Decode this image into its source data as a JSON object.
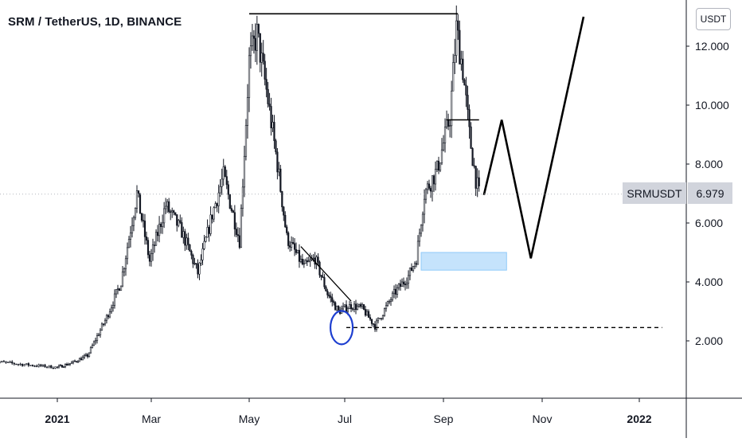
{
  "chart_data": {
    "type": "candlestick",
    "title": "SRM / TetherUS, 1D, BINANCE",
    "currency": "USDT",
    "symbol": "SRMUSDT",
    "last_price": "6.979",
    "x_ticks": [
      {
        "label": "2021",
        "date": "2021-01-01",
        "bold": true
      },
      {
        "label": "Mar",
        "date": "2021-03-01",
        "bold": false
      },
      {
        "label": "May",
        "date": "2021-05-01",
        "bold": false
      },
      {
        "label": "Jul",
        "date": "2021-07-01",
        "bold": false
      },
      {
        "label": "Sep",
        "date": "2021-09-01",
        "bold": false
      },
      {
        "label": "Nov",
        "date": "2021-11-01",
        "bold": false
      },
      {
        "label": "2022",
        "date": "2022-01-01",
        "bold": true
      }
    ],
    "y_ticks": [
      {
        "label": "2.000",
        "value": 2
      },
      {
        "label": "4.000",
        "value": 4
      },
      {
        "label": "6.000",
        "value": 6
      },
      {
        "label": "8.000",
        "value": 8
      },
      {
        "label": "10.000",
        "value": 10
      },
      {
        "label": "12.000",
        "value": 12
      }
    ],
    "price_path": [
      [
        "2020-12-01",
        1.3
      ],
      [
        "2020-12-15",
        1.2
      ],
      [
        "2021-01-01",
        1.1
      ],
      [
        "2021-01-10",
        1.25
      ],
      [
        "2021-01-20",
        1.5
      ],
      [
        "2021-02-01",
        2.8
      ],
      [
        "2021-02-10",
        4.0
      ],
      [
        "2021-02-20",
        7.0
      ],
      [
        "2021-02-28",
        4.7
      ],
      [
        "2021-03-10",
        6.6
      ],
      [
        "2021-03-20",
        5.7
      ],
      [
        "2021-03-30",
        4.3
      ],
      [
        "2021-04-08",
        6.3
      ],
      [
        "2021-04-15",
        7.6
      ],
      [
        "2021-04-25",
        5.4
      ],
      [
        "2021-05-01",
        11.5
      ],
      [
        "2021-05-06",
        12.4
      ],
      [
        "2021-05-12",
        10.5
      ],
      [
        "2021-05-19",
        8.0
      ],
      [
        "2021-05-25",
        5.5
      ],
      [
        "2021-06-05",
        4.5
      ],
      [
        "2021-06-12",
        4.8
      ],
      [
        "2021-06-20",
        3.6
      ],
      [
        "2021-06-27",
        3.0
      ],
      [
        "2021-07-05",
        3.2
      ],
      [
        "2021-07-12",
        3.1
      ],
      [
        "2021-07-20",
        2.5
      ],
      [
        "2021-08-01",
        3.6
      ],
      [
        "2021-08-10",
        4.2
      ],
      [
        "2021-08-15",
        4.8
      ],
      [
        "2021-08-20",
        7.0
      ],
      [
        "2021-08-28",
        7.8
      ],
      [
        "2021-09-05",
        9.6
      ],
      [
        "2021-09-09",
        12.6
      ],
      [
        "2021-09-13",
        11.2
      ],
      [
        "2021-09-17",
        9.0
      ],
      [
        "2021-09-21",
        7.5
      ],
      [
        "2021-09-23",
        6.98
      ]
    ],
    "annotations": {
      "top_line": {
        "from": [
          "2021-05-01",
          13.1
        ],
        "to": [
          "2021-09-10",
          13.1
        ]
      },
      "small_line": {
        "from": [
          "2021-09-03",
          9.5
        ],
        "to": [
          "2021-09-23",
          9.5
        ]
      },
      "dashed_support": {
        "from": [
          "2021-07-02",
          2.45
        ],
        "to": [
          "2022-01-15",
          2.45
        ],
        "dashed": true
      },
      "trendline": {
        "from": [
          "2021-06-03",
          5.2
        ],
        "to": [
          "2021-07-05",
          3.35
        ]
      },
      "circle": {
        "center": [
          "2021-06-29",
          2.45
        ]
      },
      "zone": {
        "from": [
          "2021-08-18",
          5.0
        ],
        "to": [
          "2021-10-10",
          4.4
        ]
      },
      "projection": [
        [
          "2021-09-26",
          6.95
        ],
        [
          "2021-10-07",
          9.5
        ],
        [
          "2021-10-25",
          4.8
        ],
        [
          "2021-11-27",
          13.0
        ]
      ]
    },
    "y_range": [
      0,
      13.5
    ],
    "x_range": [
      "2020-12-01",
      "2022-01-22"
    ],
    "grid": false,
    "legend": "none"
  }
}
